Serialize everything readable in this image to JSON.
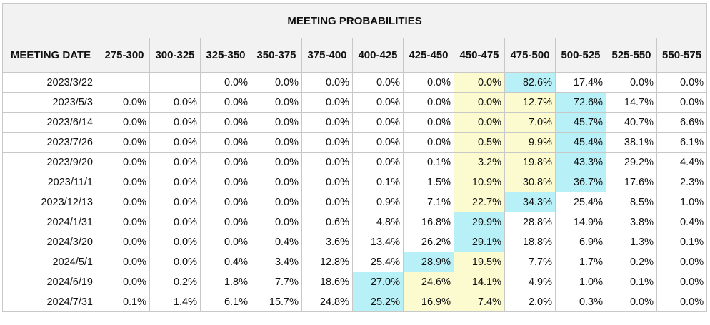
{
  "title": "MEETING PROBABILITIES",
  "colors": {
    "cyan_highlight": "#b8f0f8",
    "yellow_highlight": "#fbfbcf",
    "header_bg": "#f2f2f2"
  },
  "header": {
    "date_label": "MEETING DATE",
    "ranges": [
      "275-300",
      "300-325",
      "325-350",
      "350-375",
      "375-400",
      "400-425",
      "425-450",
      "450-475",
      "475-500",
      "500-525",
      "525-550",
      "550-575"
    ]
  },
  "rows": [
    {
      "date": "2023/3/22",
      "values": [
        "",
        "",
        "0.0%",
        "0.0%",
        "0.0%",
        "0.0%",
        "0.0%",
        "0.0%",
        "82.6%",
        "17.4%",
        "0.0%",
        "0.0%"
      ],
      "cyan": 8,
      "yellow": [
        7
      ]
    },
    {
      "date": "2023/5/3",
      "values": [
        "0.0%",
        "0.0%",
        "0.0%",
        "0.0%",
        "0.0%",
        "0.0%",
        "0.0%",
        "0.0%",
        "12.7%",
        "72.6%",
        "14.7%",
        "0.0%"
      ],
      "cyan": 9,
      "yellow": [
        7,
        8
      ]
    },
    {
      "date": "2023/6/14",
      "values": [
        "0.0%",
        "0.0%",
        "0.0%",
        "0.0%",
        "0.0%",
        "0.0%",
        "0.0%",
        "0.0%",
        "7.0%",
        "45.7%",
        "40.7%",
        "6.6%"
      ],
      "cyan": 9,
      "yellow": [
        7,
        8
      ]
    },
    {
      "date": "2023/7/26",
      "values": [
        "0.0%",
        "0.0%",
        "0.0%",
        "0.0%",
        "0.0%",
        "0.0%",
        "0.0%",
        "0.5%",
        "9.9%",
        "45.4%",
        "38.1%",
        "6.1%"
      ],
      "cyan": 9,
      "yellow": [
        7,
        8
      ]
    },
    {
      "date": "2023/9/20",
      "values": [
        "0.0%",
        "0.0%",
        "0.0%",
        "0.0%",
        "0.0%",
        "0.0%",
        "0.1%",
        "3.2%",
        "19.8%",
        "43.3%",
        "29.2%",
        "4.4%"
      ],
      "cyan": 9,
      "yellow": [
        7,
        8
      ]
    },
    {
      "date": "2023/11/1",
      "values": [
        "0.0%",
        "0.0%",
        "0.0%",
        "0.0%",
        "0.0%",
        "0.1%",
        "1.5%",
        "10.9%",
        "30.8%",
        "36.7%",
        "17.6%",
        "2.3%"
      ],
      "cyan": 9,
      "yellow": [
        7,
        8
      ]
    },
    {
      "date": "2023/12/13",
      "values": [
        "0.0%",
        "0.0%",
        "0.0%",
        "0.0%",
        "0.0%",
        "0.9%",
        "7.1%",
        "22.7%",
        "34.3%",
        "25.4%",
        "8.5%",
        "1.0%"
      ],
      "cyan": 8,
      "yellow": [
        7
      ]
    },
    {
      "date": "2024/1/31",
      "values": [
        "0.0%",
        "0.0%",
        "0.0%",
        "0.0%",
        "0.6%",
        "4.8%",
        "16.8%",
        "29.9%",
        "28.8%",
        "14.9%",
        "3.8%",
        "0.4%"
      ],
      "cyan": 7,
      "yellow": []
    },
    {
      "date": "2024/3/20",
      "values": [
        "0.0%",
        "0.0%",
        "0.0%",
        "0.4%",
        "3.6%",
        "13.4%",
        "26.2%",
        "29.1%",
        "18.8%",
        "6.9%",
        "1.3%",
        "0.1%"
      ],
      "cyan": 7,
      "yellow": []
    },
    {
      "date": "2024/5/1",
      "values": [
        "0.0%",
        "0.0%",
        "0.4%",
        "3.4%",
        "12.8%",
        "25.4%",
        "28.9%",
        "19.5%",
        "7.7%",
        "1.7%",
        "0.2%",
        "0.0%"
      ],
      "cyan": 6,
      "yellow": [
        7
      ]
    },
    {
      "date": "2024/6/19",
      "values": [
        "0.0%",
        "0.2%",
        "1.8%",
        "7.7%",
        "18.6%",
        "27.0%",
        "24.6%",
        "14.1%",
        "4.9%",
        "1.0%",
        "0.1%",
        "0.0%"
      ],
      "cyan": 5,
      "yellow": [
        6,
        7
      ]
    },
    {
      "date": "2024/7/31",
      "values": [
        "0.1%",
        "1.4%",
        "6.1%",
        "15.7%",
        "24.8%",
        "25.2%",
        "16.9%",
        "7.4%",
        "2.0%",
        "0.3%",
        "0.0%",
        "0.0%"
      ],
      "cyan": 5,
      "yellow": [
        6,
        7
      ]
    }
  ]
}
